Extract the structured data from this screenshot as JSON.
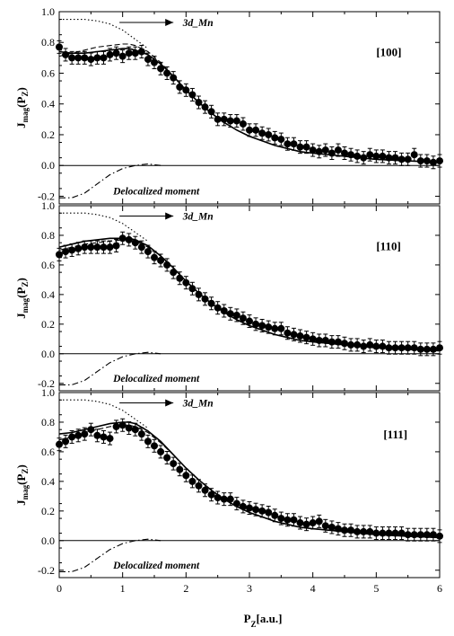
{
  "chart_data": [
    {
      "type": "line",
      "direction_label": "[100]",
      "ylabel": "J",
      "ylabel_sub": "mag",
      "ylabel_arg": "(P",
      "ylabel_arg_sub": "Z",
      "ylabel_close": ")",
      "ylim": [
        -0.25,
        1.0
      ],
      "xlim": [
        0,
        6
      ],
      "yticks": [
        "1.0",
        "0.8",
        "0.6",
        "0.4",
        "0.2",
        "0.0",
        "-0.2"
      ],
      "annotation_3d": "3d_Mn",
      "annotation_deloc": "Delocalized moment",
      "series": [
        {
          "style": "experiment",
          "x": [
            0,
            0.1,
            0.2,
            0.3,
            0.4,
            0.5,
            0.6,
            0.7,
            0.8,
            0.9,
            1.0,
            1.1,
            1.2,
            1.3,
            1.4,
            1.5,
            1.6,
            1.7,
            1.8,
            1.9,
            2.0,
            2.1,
            2.2,
            2.3,
            2.4,
            2.5,
            2.6,
            2.7,
            2.8,
            2.9,
            3.0,
            3.1,
            3.2,
            3.3,
            3.4,
            3.5,
            3.6,
            3.7,
            3.8,
            3.9,
            4.0,
            4.1,
            4.2,
            4.3,
            4.4,
            4.5,
            4.6,
            4.7,
            4.8,
            4.9,
            5.0,
            5.1,
            5.2,
            5.3,
            5.4,
            5.5,
            5.6,
            5.7,
            5.8,
            5.9,
            6.0
          ],
          "y": [
            0.77,
            0.72,
            0.7,
            0.7,
            0.7,
            0.69,
            0.7,
            0.7,
            0.72,
            0.73,
            0.71,
            0.73,
            0.73,
            0.74,
            0.69,
            0.67,
            0.63,
            0.6,
            0.57,
            0.51,
            0.49,
            0.46,
            0.41,
            0.38,
            0.35,
            0.3,
            0.3,
            0.29,
            0.29,
            0.27,
            0.23,
            0.23,
            0.21,
            0.2,
            0.18,
            0.17,
            0.14,
            0.14,
            0.12,
            0.12,
            0.1,
            0.09,
            0.1,
            0.08,
            0.1,
            0.08,
            0.07,
            0.06,
            0.05,
            0.07,
            0.06,
            0.06,
            0.05,
            0.05,
            0.04,
            0.04,
            0.07,
            0.03,
            0.03,
            0.02,
            0.03
          ]
        },
        {
          "style": "solid",
          "x": [
            0,
            0.2,
            0.4,
            0.6,
            0.8,
            1.0,
            1.1,
            1.2,
            1.4,
            1.6,
            1.8,
            2.0,
            2.2,
            2.4,
            2.6,
            2.8,
            3.0,
            3.2,
            3.4,
            3.6,
            3.8,
            4.0,
            4.5,
            5.0,
            5.5,
            6.0
          ],
          "y": [
            0.74,
            0.73,
            0.73,
            0.74,
            0.75,
            0.76,
            0.76,
            0.75,
            0.72,
            0.66,
            0.58,
            0.49,
            0.41,
            0.34,
            0.28,
            0.23,
            0.19,
            0.16,
            0.13,
            0.11,
            0.09,
            0.08,
            0.06,
            0.04,
            0.03,
            0.02
          ]
        },
        {
          "style": "dashed",
          "x": [
            0,
            0.2,
            0.4,
            0.6,
            0.8,
            1.0,
            1.1,
            1.2,
            1.4,
            1.6,
            1.8,
            2.0,
            2.2,
            2.4,
            2.6,
            2.8,
            3.0,
            3.2,
            3.4,
            3.6,
            3.8,
            4.0,
            4.5,
            5.0,
            5.5,
            6.0
          ],
          "y": [
            0.71,
            0.73,
            0.75,
            0.77,
            0.78,
            0.79,
            0.79,
            0.78,
            0.74,
            0.67,
            0.58,
            0.49,
            0.41,
            0.34,
            0.28,
            0.23,
            0.19,
            0.16,
            0.13,
            0.11,
            0.09,
            0.08,
            0.06,
            0.04,
            0.03,
            0.02
          ]
        },
        {
          "style": "dotted",
          "x": [
            0,
            0.2,
            0.4,
            0.6,
            0.8,
            1.0,
            1.2,
            1.4
          ],
          "y": [
            0.95,
            0.95,
            0.95,
            0.94,
            0.92,
            0.88,
            0.82,
            0.76
          ]
        },
        {
          "style": "dashdot",
          "x": [
            0,
            0.2,
            0.4,
            0.6,
            0.8,
            1.0,
            1.2,
            1.4,
            1.6
          ],
          "y": [
            -0.21,
            -0.21,
            -0.18,
            -0.12,
            -0.06,
            -0.02,
            0.0,
            0.01,
            0.0
          ]
        }
      ]
    },
    {
      "type": "line",
      "direction_label": "[110]",
      "ylabel": "J",
      "ylabel_sub": "mag",
      "ylabel_arg": "(P",
      "ylabel_arg_sub": "Z",
      "ylabel_close": ")",
      "ylim": [
        -0.25,
        1.0
      ],
      "xlim": [
        0,
        6
      ],
      "yticks": [
        "1.0",
        "0.8",
        "0.6",
        "0.4",
        "0.2",
        "0.0",
        "-0.2"
      ],
      "annotation_3d": "3d_Mn",
      "annotation_deloc": "Delocalized moment",
      "series": [
        {
          "style": "experiment",
          "x": [
            0,
            0.1,
            0.2,
            0.3,
            0.4,
            0.5,
            0.6,
            0.7,
            0.8,
            0.9,
            1.0,
            1.1,
            1.2,
            1.3,
            1.4,
            1.5,
            1.6,
            1.7,
            1.8,
            1.9,
            2.0,
            2.1,
            2.2,
            2.3,
            2.4,
            2.5,
            2.6,
            2.7,
            2.8,
            2.9,
            3.0,
            3.1,
            3.2,
            3.3,
            3.4,
            3.5,
            3.6,
            3.7,
            3.8,
            3.9,
            4.0,
            4.1,
            4.2,
            4.3,
            4.4,
            4.5,
            4.6,
            4.7,
            4.8,
            4.9,
            5.0,
            5.1,
            5.2,
            5.3,
            5.4,
            5.5,
            5.6,
            5.7,
            5.8,
            5.9,
            6.0
          ],
          "y": [
            0.67,
            0.69,
            0.7,
            0.71,
            0.72,
            0.72,
            0.72,
            0.72,
            0.72,
            0.73,
            0.78,
            0.77,
            0.75,
            0.72,
            0.69,
            0.65,
            0.63,
            0.6,
            0.55,
            0.51,
            0.48,
            0.44,
            0.4,
            0.37,
            0.34,
            0.31,
            0.29,
            0.27,
            0.26,
            0.24,
            0.22,
            0.2,
            0.19,
            0.18,
            0.17,
            0.17,
            0.14,
            0.13,
            0.12,
            0.11,
            0.1,
            0.09,
            0.09,
            0.08,
            0.08,
            0.07,
            0.06,
            0.06,
            0.05,
            0.06,
            0.05,
            0.05,
            0.04,
            0.04,
            0.04,
            0.04,
            0.04,
            0.03,
            0.03,
            0.03,
            0.04
          ]
        },
        {
          "style": "solid",
          "x": [
            0,
            0.2,
            0.4,
            0.6,
            0.8,
            1.0,
            1.1,
            1.2,
            1.4,
            1.6,
            1.8,
            2.0,
            2.2,
            2.4,
            2.6,
            2.8,
            3.0,
            3.2,
            3.4,
            3.6,
            3.8,
            4.0,
            4.5,
            5.0,
            5.5,
            6.0
          ],
          "y": [
            0.72,
            0.74,
            0.76,
            0.77,
            0.78,
            0.78,
            0.78,
            0.77,
            0.73,
            0.66,
            0.58,
            0.49,
            0.41,
            0.34,
            0.28,
            0.23,
            0.19,
            0.16,
            0.13,
            0.11,
            0.09,
            0.08,
            0.06,
            0.04,
            0.03,
            0.02
          ]
        },
        {
          "style": "dashed",
          "x": [
            0,
            0.2,
            0.4,
            0.6,
            0.8,
            1.0,
            1.1,
            1.2,
            1.4,
            1.6,
            1.8,
            2.0,
            2.2,
            2.4,
            2.6,
            2.8,
            3.0,
            3.2,
            3.4,
            3.6,
            3.8,
            4.0,
            4.5,
            5.0,
            5.5,
            6.0
          ],
          "y": [
            0.7,
            0.72,
            0.74,
            0.75,
            0.76,
            0.77,
            0.77,
            0.76,
            0.72,
            0.66,
            0.58,
            0.49,
            0.41,
            0.34,
            0.28,
            0.23,
            0.19,
            0.16,
            0.13,
            0.11,
            0.09,
            0.08,
            0.06,
            0.04,
            0.03,
            0.02
          ]
        },
        {
          "style": "dotted",
          "x": [
            0,
            0.2,
            0.4,
            0.6,
            0.8,
            1.0,
            1.2,
            1.4
          ],
          "y": [
            0.95,
            0.95,
            0.95,
            0.94,
            0.92,
            0.88,
            0.82,
            0.76
          ]
        },
        {
          "style": "dashdot",
          "x": [
            0,
            0.2,
            0.4,
            0.6,
            0.8,
            1.0,
            1.2,
            1.4,
            1.6
          ],
          "y": [
            -0.21,
            -0.21,
            -0.18,
            -0.12,
            -0.06,
            -0.02,
            0.0,
            0.01,
            0.0
          ]
        }
      ]
    },
    {
      "type": "line",
      "direction_label": "[111]",
      "ylabel": "J",
      "ylabel_sub": "mag",
      "ylabel_arg": "(P",
      "ylabel_arg_sub": "Z",
      "ylabel_close": ")",
      "ylim": [
        -0.25,
        1.0
      ],
      "xlim": [
        0,
        6
      ],
      "yticks": [
        "1.0",
        "0.8",
        "0.6",
        "0.4",
        "0.2",
        "0.0",
        "-0.2"
      ],
      "xticks": [
        "0",
        "1",
        "2",
        "3",
        "4",
        "5",
        "6"
      ],
      "xlabel": "P",
      "xlabel_sub": "Z",
      "xlabel_tail": "[a.u.]",
      "annotation_3d": "3d_Mn",
      "annotation_deloc": "Delocalized moment",
      "series": [
        {
          "style": "experiment",
          "x": [
            0,
            0.1,
            0.2,
            0.3,
            0.4,
            0.5,
            0.6,
            0.7,
            0.8,
            0.9,
            1.0,
            1.1,
            1.2,
            1.3,
            1.4,
            1.5,
            1.6,
            1.7,
            1.8,
            1.9,
            2.0,
            2.1,
            2.2,
            2.3,
            2.4,
            2.5,
            2.6,
            2.7,
            2.8,
            2.9,
            3.0,
            3.1,
            3.2,
            3.3,
            3.4,
            3.5,
            3.6,
            3.7,
            3.8,
            3.9,
            4.0,
            4.1,
            4.2,
            4.3,
            4.4,
            4.5,
            4.6,
            4.7,
            4.8,
            4.9,
            5.0,
            5.1,
            5.2,
            5.3,
            5.4,
            5.5,
            5.6,
            5.7,
            5.8,
            5.9,
            6.0
          ],
          "y": [
            0.65,
            0.67,
            0.7,
            0.71,
            0.72,
            0.75,
            0.71,
            0.7,
            0.69,
            0.77,
            0.78,
            0.76,
            0.75,
            0.72,
            0.67,
            0.64,
            0.6,
            0.56,
            0.52,
            0.48,
            0.44,
            0.4,
            0.37,
            0.34,
            0.31,
            0.29,
            0.28,
            0.28,
            0.25,
            0.23,
            0.22,
            0.21,
            0.2,
            0.19,
            0.17,
            0.15,
            0.14,
            0.14,
            0.12,
            0.11,
            0.12,
            0.13,
            0.1,
            0.09,
            0.08,
            0.07,
            0.07,
            0.06,
            0.06,
            0.06,
            0.05,
            0.05,
            0.05,
            0.05,
            0.05,
            0.04,
            0.04,
            0.04,
            0.04,
            0.04,
            0.03
          ]
        },
        {
          "style": "solid",
          "x": [
            0,
            0.2,
            0.4,
            0.6,
            0.8,
            1.0,
            1.1,
            1.2,
            1.4,
            1.6,
            1.8,
            2.0,
            2.2,
            2.4,
            2.6,
            2.8,
            3.0,
            3.2,
            3.4,
            3.6,
            3.8,
            4.0,
            4.5,
            5.0,
            5.5,
            6.0
          ],
          "y": [
            0.72,
            0.73,
            0.75,
            0.77,
            0.79,
            0.8,
            0.8,
            0.79,
            0.74,
            0.67,
            0.58,
            0.49,
            0.41,
            0.34,
            0.28,
            0.23,
            0.19,
            0.16,
            0.13,
            0.11,
            0.09,
            0.08,
            0.06,
            0.04,
            0.03,
            0.02
          ]
        },
        {
          "style": "dashed",
          "x": [
            0,
            0.2,
            0.4,
            0.6,
            0.8,
            1.0,
            1.1,
            1.2,
            1.4,
            1.6,
            1.8,
            2.0,
            2.2,
            2.4,
            2.6,
            2.8,
            3.0,
            3.2,
            3.4,
            3.6,
            3.8,
            4.0,
            4.5,
            5.0,
            5.5,
            6.0
          ],
          "y": [
            0.68,
            0.7,
            0.73,
            0.75,
            0.77,
            0.78,
            0.78,
            0.77,
            0.73,
            0.66,
            0.58,
            0.49,
            0.41,
            0.34,
            0.28,
            0.23,
            0.19,
            0.16,
            0.13,
            0.11,
            0.09,
            0.08,
            0.06,
            0.04,
            0.03,
            0.02
          ]
        },
        {
          "style": "dotted",
          "x": [
            0,
            0.2,
            0.4,
            0.6,
            0.8,
            1.0,
            1.2,
            1.4
          ],
          "y": [
            0.95,
            0.95,
            0.95,
            0.94,
            0.92,
            0.88,
            0.82,
            0.76
          ]
        },
        {
          "style": "dashdot",
          "x": [
            0,
            0.2,
            0.4,
            0.6,
            0.8,
            1.0,
            1.2,
            1.4,
            1.6
          ],
          "y": [
            -0.21,
            -0.21,
            -0.18,
            -0.12,
            -0.06,
            -0.02,
            0.0,
            0.01,
            0.0
          ]
        }
      ]
    }
  ]
}
